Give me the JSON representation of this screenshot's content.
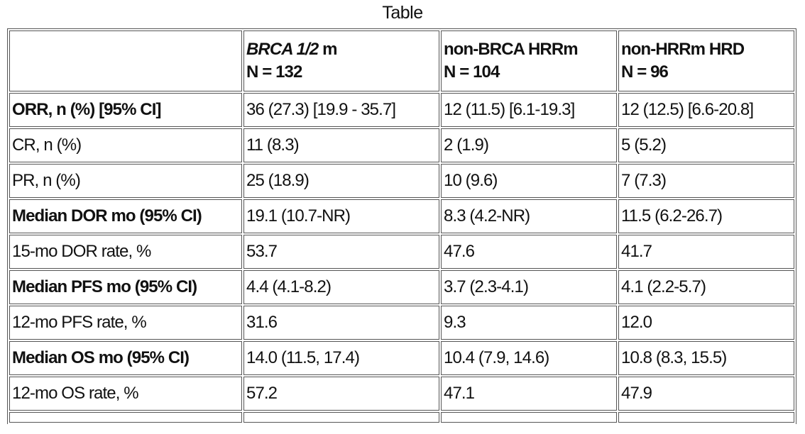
{
  "title": "Table",
  "table": {
    "columns": [
      {
        "title_italic": "BRCA 1/2",
        "title": "m",
        "n": "N = 132"
      },
      {
        "title": "non-BRCA HRRm",
        "n": "N = 104"
      },
      {
        "title": "non-HRRm HRD",
        "n": "N = 96"
      }
    ],
    "rows": [
      {
        "label": "ORR, n (%) [95% CI]",
        "bold": true,
        "cells": [
          "36 (27.3) [19.9 - 35.7]",
          "12 (11.5) [6.1-19.3]",
          "12 (12.5) [6.6-20.8]"
        ]
      },
      {
        "label": "CR, n (%)",
        "bold": false,
        "cells": [
          "11 (8.3)",
          "2 (1.9)",
          "5 (5.2)"
        ]
      },
      {
        "label": "PR, n (%)",
        "bold": false,
        "cells": [
          "25 (18.9)",
          "10 (9.6)",
          "7 (7.3)"
        ]
      },
      {
        "label": "Median DOR mo (95% CI)",
        "bold": true,
        "cells": [
          "19.1 (10.7-NR)",
          "8.3 (4.2-NR)",
          "11.5 (6.2-26.7)"
        ]
      },
      {
        "label": "15-mo DOR rate, %",
        "bold": false,
        "cells": [
          "53.7",
          "47.6",
          "41.7"
        ]
      },
      {
        "label": "Median PFS mo (95% CI)",
        "bold": true,
        "cells": [
          "4.4 (4.1-8.2)",
          "3.7 (2.3-4.1)",
          "4.1 (2.2-5.7)"
        ]
      },
      {
        "label": "12-mo PFS rate, %",
        "bold": false,
        "cells": [
          "31.6",
          "9.3",
          "12.0"
        ]
      },
      {
        "label": "Median OS mo (95% CI)",
        "bold": true,
        "cells": [
          "14.0 (11.5, 17.4)",
          "10.4 (7.9, 14.6)",
          "10.8 (8.3, 15.5)"
        ]
      },
      {
        "label": "12-mo OS rate, %",
        "bold": false,
        "cells": [
          "57.2",
          "47.1",
          "47.9"
        ]
      }
    ]
  }
}
